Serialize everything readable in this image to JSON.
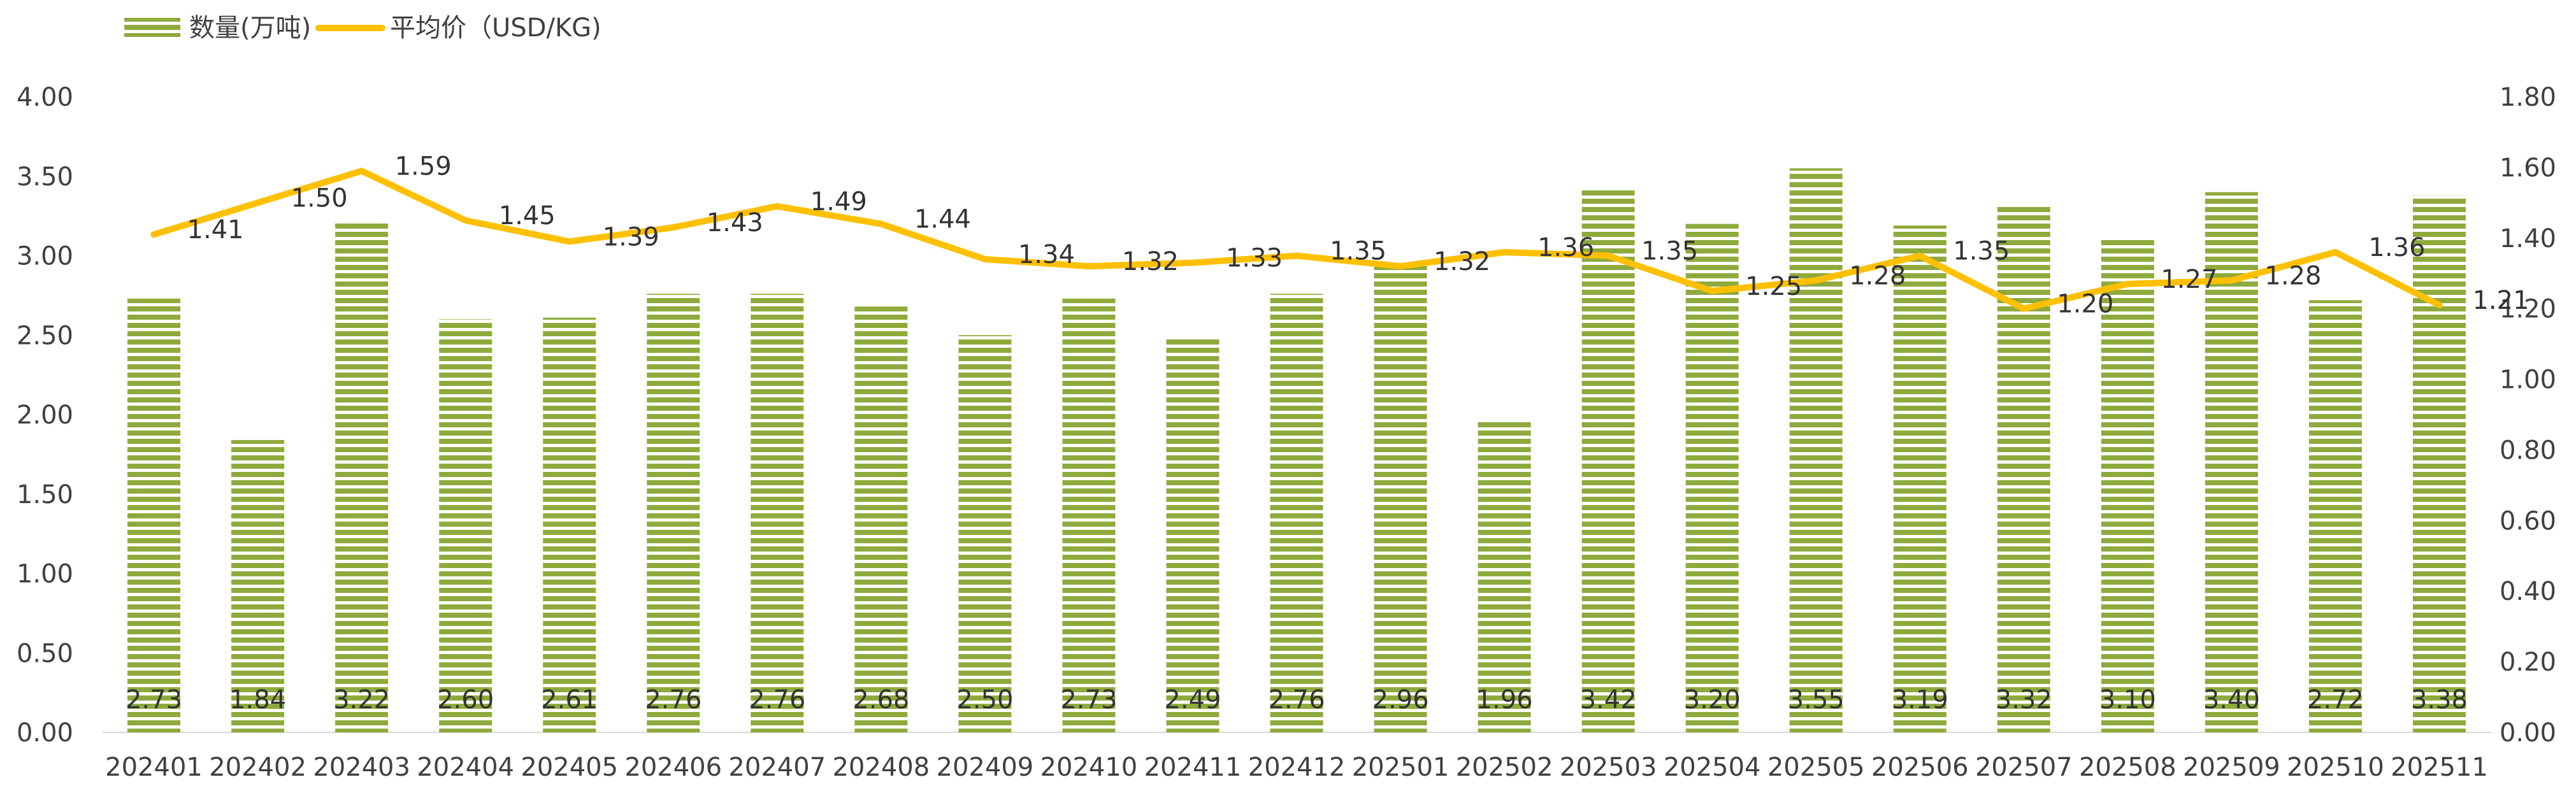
{
  "chart_data": {
    "type": "bar+line",
    "categories": [
      "202401",
      "202402",
      "202403",
      "202404",
      "202405",
      "202406",
      "202407",
      "202408",
      "202409",
      "202410",
      "202411",
      "202412",
      "202501",
      "202502",
      "202503",
      "202504",
      "202505",
      "202506",
      "202507",
      "202508",
      "202509",
      "202510",
      "202511"
    ],
    "series": [
      {
        "name": "数量(万吨)",
        "type": "bar",
        "axis": "left",
        "color": "#8FAA3C",
        "values": [
          2.73,
          1.84,
          3.22,
          2.6,
          2.61,
          2.76,
          2.76,
          2.68,
          2.5,
          2.73,
          2.49,
          2.76,
          2.96,
          1.96,
          3.42,
          3.2,
          3.55,
          3.19,
          3.32,
          3.1,
          3.4,
          2.72,
          3.38
        ],
        "labels": [
          "2.73",
          "1.84",
          "3.22",
          "2.60",
          "2.61",
          "2.76",
          "2.76",
          "2.68",
          "2.50",
          "2.73",
          "2.49",
          "2.76",
          "2.96",
          "1.96",
          "3.42",
          "3.20",
          "3.55",
          "3.19",
          "3.32",
          "3.10",
          "3.40",
          "2.72",
          "3.38"
        ]
      },
      {
        "name": "平均价（USD/KG)",
        "type": "line",
        "axis": "right",
        "color": "#FFC000",
        "values": [
          1.41,
          1.5,
          1.59,
          1.45,
          1.39,
          1.43,
          1.49,
          1.44,
          1.34,
          1.32,
          1.33,
          1.35,
          1.32,
          1.36,
          1.35,
          1.25,
          1.28,
          1.35,
          1.2,
          1.27,
          1.28,
          1.36,
          1.21
        ],
        "labels": [
          "1.41",
          "1.50",
          "1.59",
          "1.45",
          "1.39",
          "1.43",
          "1.49",
          "1.44",
          "1.34",
          "1.32",
          "1.33",
          "1.35",
          "1.32",
          "1.36",
          "1.35",
          "1.25",
          "1.28",
          "1.35",
          "1.20",
          "1.27",
          "1.28",
          "1.36",
          "1.21"
        ]
      }
    ],
    "y_left": {
      "range": [
        0,
        4
      ],
      "ticks": [
        "0.00",
        "0.50",
        "1.00",
        "1.50",
        "2.00",
        "2.50",
        "3.00",
        "3.50",
        "4.00"
      ]
    },
    "y_right": {
      "range": [
        0,
        1.8
      ],
      "ticks": [
        "0.00",
        "0.20",
        "0.40",
        "0.60",
        "0.80",
        "1.00",
        "1.20",
        "1.40",
        "1.60",
        "1.80"
      ]
    },
    "grid": false,
    "legend_position": "top-left"
  }
}
